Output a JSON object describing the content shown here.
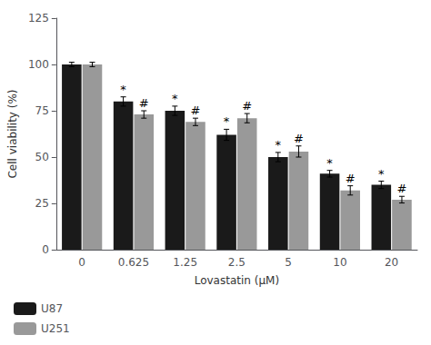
{
  "chart_data": {
    "type": "bar",
    "categories": [
      "0",
      "0.625",
      "1.25",
      "2.5",
      "5",
      "10",
      "20"
    ],
    "series": [
      {
        "name": "U87",
        "color": "#1a1a1a",
        "values": [
          100,
          80,
          75,
          62,
          50,
          41,
          35
        ],
        "errors": [
          1.2,
          2.5,
          2.5,
          3.0,
          2.5,
          1.8,
          2.0
        ],
        "annotations": [
          null,
          "*",
          "*",
          "*",
          "*",
          "*",
          "*"
        ]
      },
      {
        "name": "U251",
        "color": "#999999",
        "values": [
          100,
          73,
          69,
          71,
          53,
          32,
          27
        ],
        "errors": [
          1.2,
          2.0,
          2.0,
          2.5,
          3.0,
          2.5,
          1.8
        ],
        "annotations": [
          null,
          "#",
          "#",
          "#",
          "#",
          "#",
          "#"
        ]
      }
    ],
    "xlabel": "Lovastatin (μM)",
    "ylabel": "Cell viability (%)",
    "ylim": [
      0,
      125
    ],
    "yticks": [
      0,
      25,
      50,
      75,
      100,
      125
    ],
    "grid": false,
    "legend": "bottom left"
  }
}
